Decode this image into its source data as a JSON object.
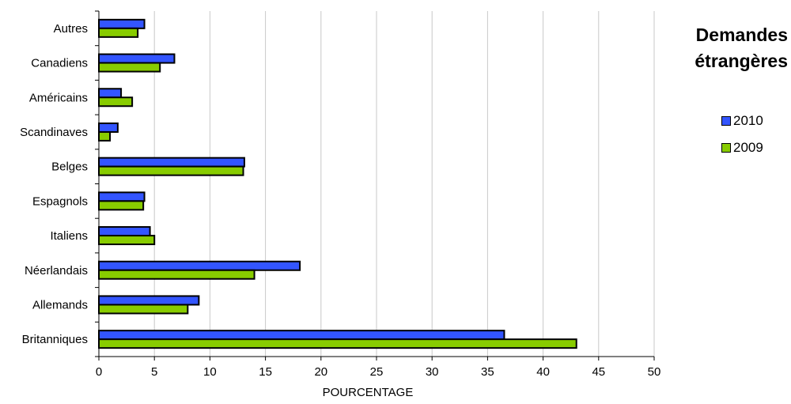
{
  "chart_data": {
    "type": "bar",
    "orientation": "horizontal",
    "categories": [
      "Autres",
      "Canadiens",
      "Américains",
      "Scandinaves",
      "Belges",
      "Espagnols",
      "Italiens",
      "Néerlandais",
      "Allemands",
      "Britanniques"
    ],
    "series": [
      {
        "name": "2010",
        "color": "#3355ff",
        "values": [
          4.1,
          6.8,
          2.0,
          1.7,
          13.1,
          4.1,
          4.6,
          18.1,
          9.0,
          36.5
        ]
      },
      {
        "name": "2009",
        "color": "#88cc00",
        "values": [
          3.5,
          5.5,
          3.0,
          1.0,
          13.0,
          4.0,
          5.0,
          14.0,
          8.0,
          43.0
        ]
      }
    ],
    "xlabel": "POURCENTAGE",
    "ylabel": "",
    "xlim": [
      0,
      50
    ],
    "xticks": [
      "0",
      "5",
      "10",
      "15",
      "20",
      "25",
      "30",
      "35",
      "40",
      "45",
      "50"
    ],
    "grid": "vertical",
    "legend_title": "Demandes étrangères",
    "legend_position": "right"
  }
}
